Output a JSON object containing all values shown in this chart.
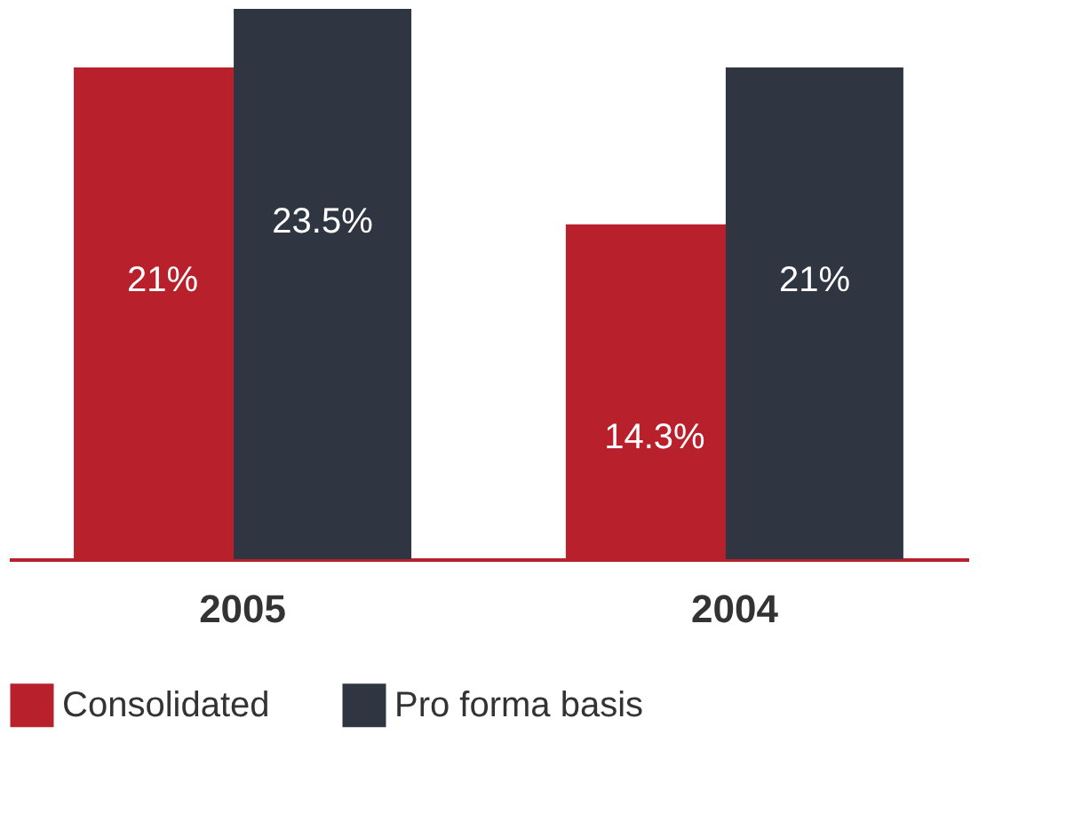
{
  "chart_data": {
    "type": "bar",
    "categories": [
      "2005",
      "2004"
    ],
    "series": [
      {
        "name": "Consolidated",
        "color": "#b8202c",
        "values": [
          21,
          14.3
        ],
        "value_labels": [
          "21%",
          "14.3%"
        ]
      },
      {
        "name": "Pro forma basis",
        "color": "#2f3642",
        "values": [
          23.5,
          21
        ],
        "value_labels": [
          "23.5%",
          "21%"
        ]
      }
    ],
    "legend": "bottom",
    "grid": false
  }
}
